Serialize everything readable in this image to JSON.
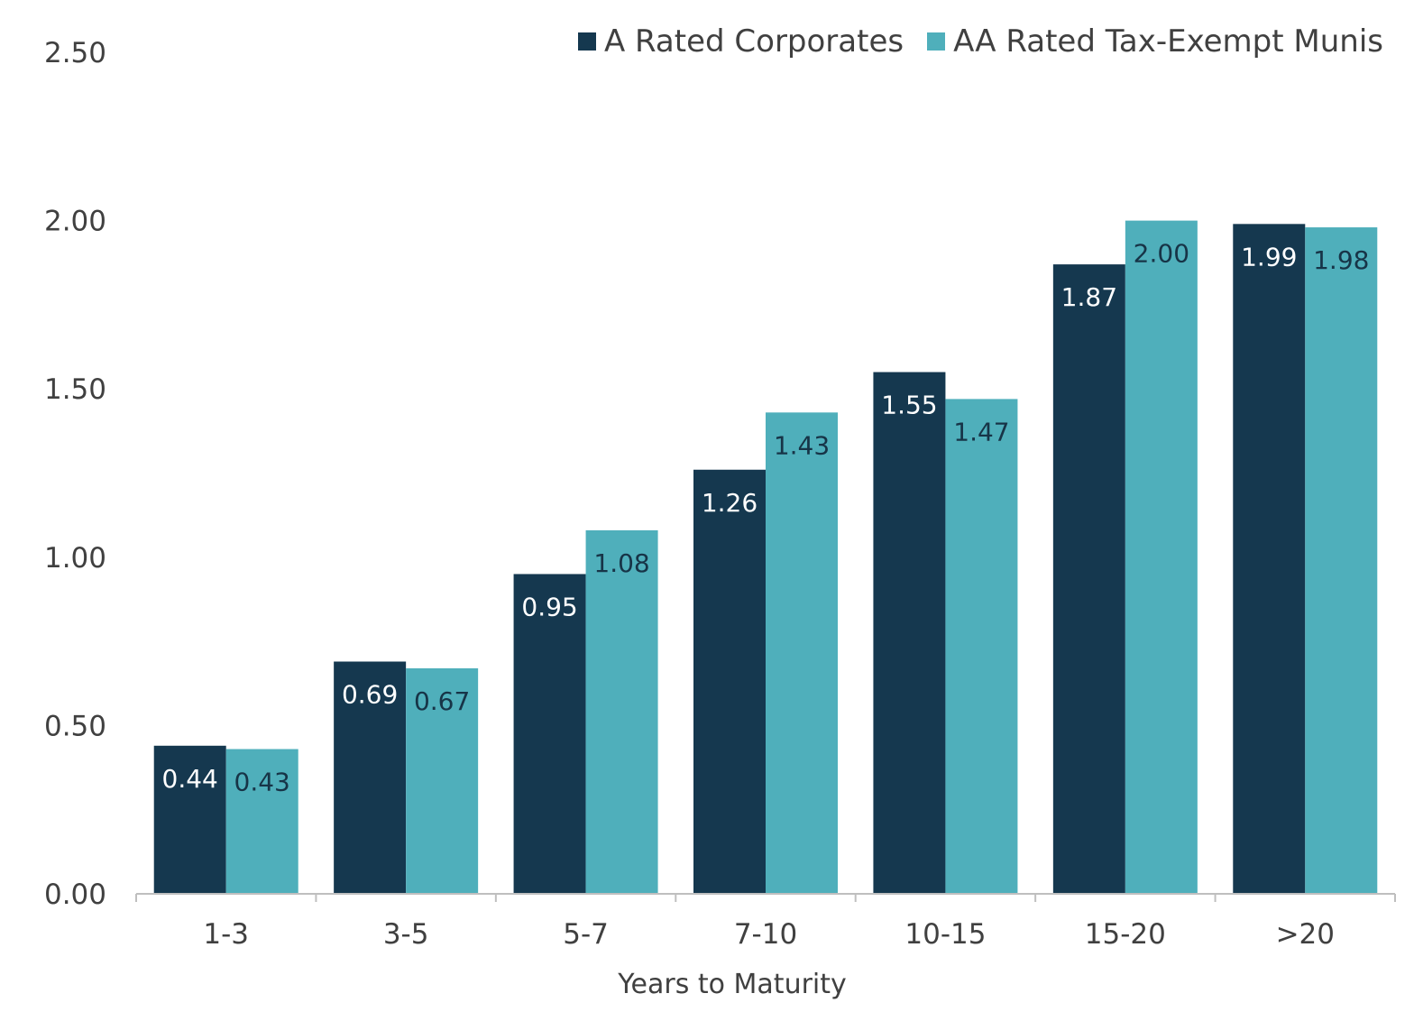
{
  "chart_data": {
    "type": "bar",
    "xlabel": "Years to Maturity",
    "ylabel": "",
    "categories": [
      "1-3",
      "3-5",
      "5-7",
      "7-10",
      "10-15",
      "15-20",
      ">20"
    ],
    "series": [
      {
        "name": "A Rated Corporates",
        "color": "#15384f",
        "label_color": "#ffffff",
        "values": [
          0.44,
          0.69,
          0.95,
          1.26,
          1.55,
          1.87,
          1.99
        ],
        "labels": [
          "0.44",
          "0.69",
          "0.95",
          "1.26",
          "1.55",
          "1.87",
          "1.99"
        ]
      },
      {
        "name": "AA Rated Tax-Exempt Munis",
        "color": "#4fafbb",
        "label_color": "#173447",
        "values": [
          0.43,
          0.67,
          1.08,
          1.43,
          1.47,
          2.0,
          1.98
        ],
        "labels": [
          "0.43",
          "0.67",
          "1.08",
          "1.43",
          "1.47",
          "2.00",
          "1.98"
        ]
      }
    ],
    "ylim": [
      0,
      2.5
    ],
    "yticks": [
      "0.00",
      "0.50",
      "1.00",
      "1.50",
      "2.00",
      "2.50"
    ],
    "ytick_values": [
      0,
      0.5,
      1.0,
      1.5,
      2.0,
      2.5
    ],
    "grid": false,
    "legend_position": "top-right"
  }
}
